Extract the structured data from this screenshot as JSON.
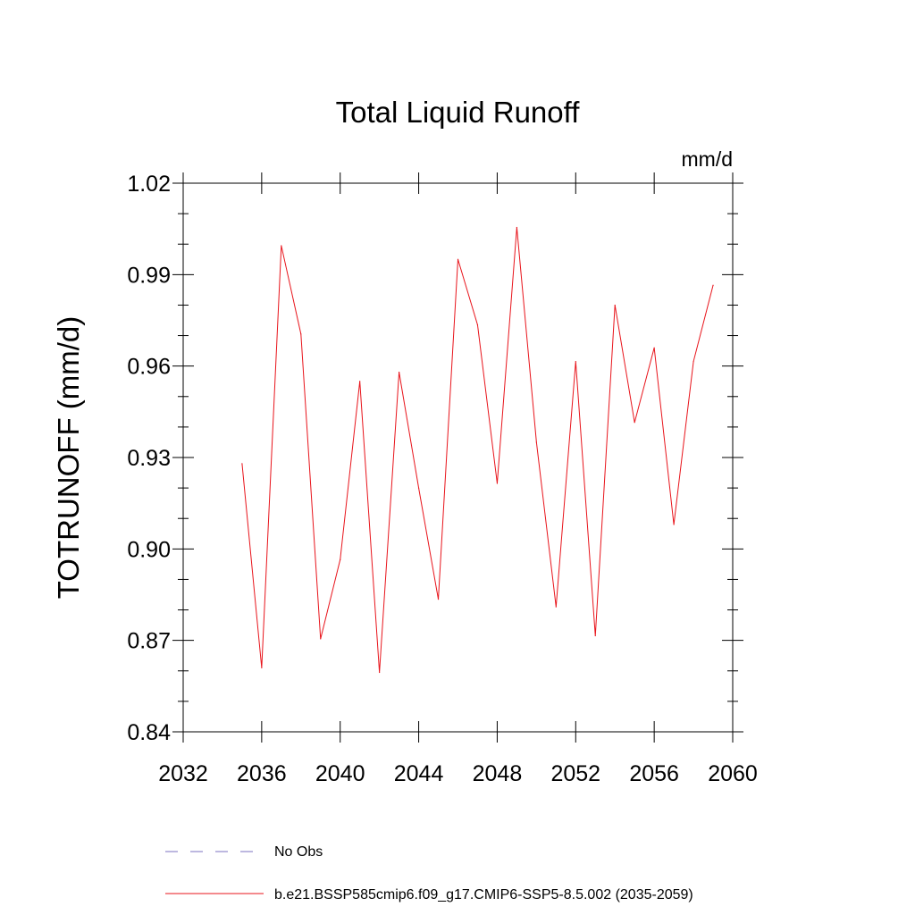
{
  "chart_data": {
    "type": "line",
    "title": "Total Liquid Runoff",
    "units_label": "mm/d",
    "ylabel": "TOTRUNOFF  (mm/d)",
    "xlabel": "",
    "xlim": [
      2032,
      2060
    ],
    "ylim": [
      0.84,
      1.02
    ],
    "x_ticks": [
      2032,
      2036,
      2040,
      2044,
      2048,
      2052,
      2056,
      2060
    ],
    "x_tick_labels": [
      "2032",
      "2036",
      "2040",
      "2044",
      "2048",
      "2052",
      "2056",
      "2060"
    ],
    "y_ticks": [
      0.84,
      0.87,
      0.9,
      0.93,
      0.96,
      0.99,
      1.02
    ],
    "y_tick_labels": [
      "0.84",
      "0.87",
      "0.90",
      "0.93",
      "0.96",
      "0.99",
      "1.02"
    ],
    "grid": false,
    "legend_placement": "bottom",
    "legend": [
      {
        "label": "No Obs",
        "color": "#7b72c0",
        "dash": "dashed"
      },
      {
        "label": "b.e21.BSSP585cmip6.f09_g17.CMIP6-SSP5-8.5.002 (2035-2059)",
        "color": "#e8141b",
        "dash": "solid"
      }
    ],
    "series": [
      {
        "name": "b.e21.BSSP585cmip6.f09_g17.CMIP6-SSP5-8.5.002 (2035-2059)",
        "color": "#e8141b",
        "x": [
          2035,
          2036,
          2037,
          2038,
          2039,
          2040,
          2041,
          2042,
          2043,
          2044,
          2045,
          2046,
          2047,
          2048,
          2049,
          2050,
          2051,
          2052,
          2053,
          2054,
          2055,
          2056,
          2057,
          2058,
          2059
        ],
        "y": [
          0.928,
          0.861,
          0.9995,
          0.9705,
          0.8705,
          0.8965,
          0.955,
          0.8595,
          0.958,
          0.92,
          0.8835,
          0.995,
          0.9735,
          0.9215,
          1.0055,
          0.935,
          0.881,
          0.9615,
          0.8715,
          0.98,
          0.9415,
          0.966,
          0.908,
          0.9615,
          0.9865
        ]
      }
    ]
  }
}
